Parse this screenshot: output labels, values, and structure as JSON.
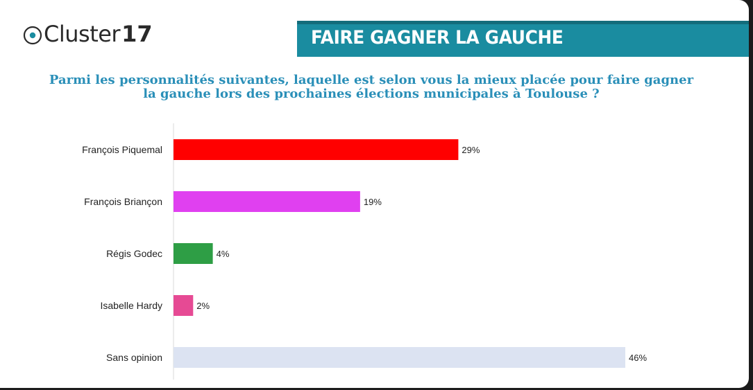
{
  "header": {
    "logo_word": "Cluster",
    "logo_number": "17",
    "banner_title": "FAIRE GAGNER LA GAUCHE"
  },
  "question": {
    "line1": "Parmi les personnalités suivantes, laquelle est selon vous la mieux placée pour faire gagner",
    "line2": "la gauche lors des prochaines élections municipales à Toulouse ?"
  },
  "chart_data": {
    "type": "bar",
    "orientation": "horizontal",
    "categories": [
      "François Piquemal",
      "François Briançon",
      "Régis Godec",
      "Isabelle Hardy",
      "Sans opinion"
    ],
    "values": [
      29,
      19,
      4,
      2,
      46
    ],
    "value_labels": [
      "29%",
      "19%",
      "4%",
      "2%",
      "46%"
    ],
    "colors": [
      "#ff0000",
      "#e040f0",
      "#2e9e45",
      "#e64a94",
      "#dce3f2"
    ],
    "unit": "%",
    "xlim": [
      0,
      46
    ],
    "grid": false,
    "legend": false
  },
  "colors": {
    "banner": "#1a8ca0",
    "question_text": "#2a8fb8",
    "logo_ring": "#1a8ca0"
  },
  "icons": {
    "logo": "cluster17-ring-logo"
  }
}
